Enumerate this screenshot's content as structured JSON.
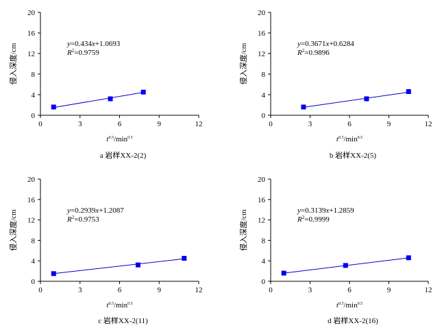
{
  "chart_data": [
    {
      "type": "scatter",
      "caption": "a 岩样XX-2(2)",
      "xlabel": "t0.5/min0.5",
      "ylabel": "侵入深度/cm",
      "xlim": [
        0,
        12
      ],
      "ylim": [
        0,
        20
      ],
      "xticks": [
        0,
        3,
        6,
        9,
        12
      ],
      "yticks": [
        0,
        4,
        8,
        12,
        16,
        20
      ],
      "x": [
        1.0,
        5.3,
        7.8
      ],
      "y": [
        1.6,
        3.2,
        4.5
      ],
      "fit": {
        "slope": 0.434,
        "intercept": 1.0693,
        "x_range": [
          1.0,
          7.8
        ]
      },
      "equation": "y=0.434x+1.0693",
      "r2": "R2=0.9759"
    },
    {
      "type": "scatter",
      "caption": "b 岩样XX-2(5)",
      "xlabel": "t0.5/min0.5",
      "ylabel": "侵入深度/cm",
      "xlim": [
        0,
        12
      ],
      "ylim": [
        0,
        20
      ],
      "xticks": [
        0,
        3,
        6,
        9,
        12
      ],
      "yticks": [
        0,
        4,
        8,
        12,
        16,
        20
      ],
      "x": [
        2.5,
        7.3,
        10.5
      ],
      "y": [
        1.6,
        3.2,
        4.6
      ],
      "fit": {
        "slope": 0.3671,
        "intercept": 0.6284,
        "x_range": [
          2.5,
          10.5
        ]
      },
      "equation": "y=0.3671x+0.6284",
      "r2": "R2=0.9896"
    },
    {
      "type": "scatter",
      "caption": "c 岩样XX-2(11)",
      "xlabel": "t0.5/min0.5",
      "ylabel": "侵入深度/cm",
      "xlim": [
        0,
        12
      ],
      "ylim": [
        0,
        20
      ],
      "xticks": [
        0,
        3,
        6,
        9,
        12
      ],
      "yticks": [
        0,
        4,
        8,
        12,
        16,
        20
      ],
      "x": [
        1.0,
        7.4,
        10.9
      ],
      "y": [
        1.5,
        3.2,
        4.5
      ],
      "fit": {
        "slope": 0.2939,
        "intercept": 1.2087,
        "x_range": [
          1.0,
          10.9
        ]
      },
      "equation": "y=0.2939x+1.2087",
      "r2": "R2=0.9753"
    },
    {
      "type": "scatter",
      "caption": "d 岩样XX-2(16)",
      "xlabel": "t0.5/min0.5",
      "ylabel": "侵入深度/cm",
      "xlim": [
        0,
        12
      ],
      "ylim": [
        0,
        20
      ],
      "xticks": [
        0,
        3,
        6,
        9,
        12
      ],
      "yticks": [
        0,
        4,
        8,
        12,
        16,
        20
      ],
      "x": [
        1.0,
        5.7,
        10.5
      ],
      "y": [
        1.6,
        3.1,
        4.6
      ],
      "fit": {
        "slope": 0.3139,
        "intercept": 1.2859,
        "x_range": [
          1.0,
          10.5
        ]
      },
      "equation": "y=0.3139x+1.2859",
      "r2": "R2=0.9999"
    }
  ],
  "colors": {
    "marker": "#0000ee",
    "line": "#0000cc",
    "axis": "#000000"
  }
}
